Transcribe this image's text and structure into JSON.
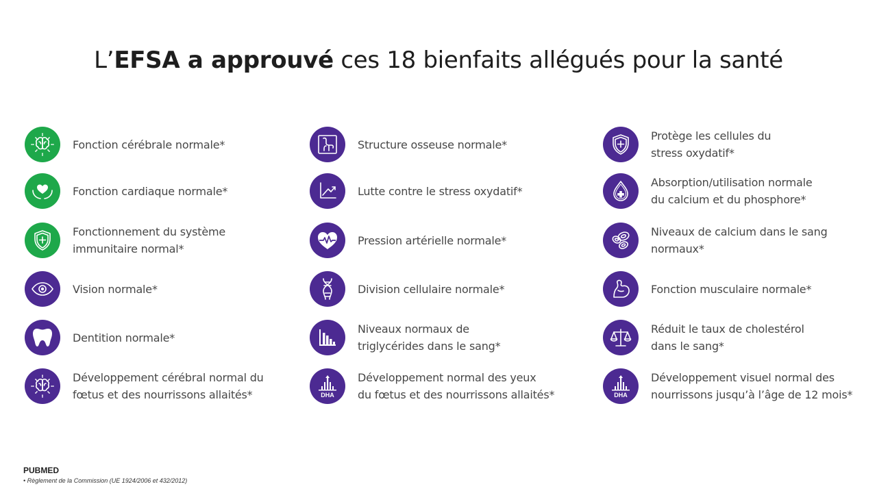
{
  "title": {
    "prefix": "L’",
    "bold": "EFSA a approuvé",
    "rest": " ces 18 bienfaits allégués pour la santé"
  },
  "columns": [
    [
      {
        "label": "Fonction cérébrale normale*",
        "icon": "brain-icon",
        "color": "green"
      },
      {
        "label": "Fonction cardiaque normale*",
        "icon": "heart-hands-icon",
        "color": "green"
      },
      {
        "label": "Fonctionnement du système\nimmunitaire normal*",
        "icon": "shield-plus-icon",
        "color": "green"
      },
      {
        "label": "Vision normale*",
        "icon": "eye-icon",
        "color": "purple"
      },
      {
        "label": "Dentition normale*",
        "icon": "tooth-icon",
        "color": "purple"
      },
      {
        "label": "Développement cérébral normal du\nfœtus et des nourrissons allaités*",
        "icon": "brain-icon",
        "color": "purple"
      }
    ],
    [
      {
        "label": "Structure osseuse normale*",
        "icon": "bone-joint-icon",
        "color": "purple"
      },
      {
        "label": "Lutte contre le stress oxydatif*",
        "icon": "trend-chart-icon",
        "color": "purple"
      },
      {
        "label": "Pression artérielle normale*",
        "icon": "heartbeat-icon",
        "color": "purple"
      },
      {
        "label": "Division cellulaire normale*",
        "icon": "dna-icon",
        "color": "purple"
      },
      {
        "label": "Niveaux normaux de\ntriglycérides dans le sang*",
        "icon": "bar-chart-icon",
        "color": "purple"
      },
      {
        "label": "Développement normal des yeux\ndu fœtus et des nourrissons allaités*",
        "icon": "dha-icon",
        "color": "purple"
      }
    ],
    [
      {
        "label": "Protège les cellules du\nstress oxydatif*",
        "icon": "shield-plus-icon",
        "color": "purple"
      },
      {
        "label": "Absorption/utilisation normale\ndu calcium et du phosphore*",
        "icon": "drop-plus-icon",
        "color": "purple"
      },
      {
        "label": "Niveaux de calcium dans le sang\nnormaux*",
        "icon": "blood-cells-icon",
        "color": "purple"
      },
      {
        "label": "Fonction musculaire normale*",
        "icon": "muscle-icon",
        "color": "purple"
      },
      {
        "label": "Réduit le taux de cholestérol\ndans le sang*",
        "icon": "scale-icon",
        "color": "purple"
      },
      {
        "label": "Développement visuel normal des\nnourrissons jusqu’à l’âge de 12 mois*",
        "icon": "dha-icon",
        "color": "purple"
      }
    ]
  ],
  "dha_text": "DHA",
  "footer": {
    "source": "PUBMED",
    "note": "• Règlement de la Commission (UE 1924/2006 et 432/2012)"
  },
  "colors": {
    "green": "#1ea84a",
    "purple": "#4c2a92"
  }
}
